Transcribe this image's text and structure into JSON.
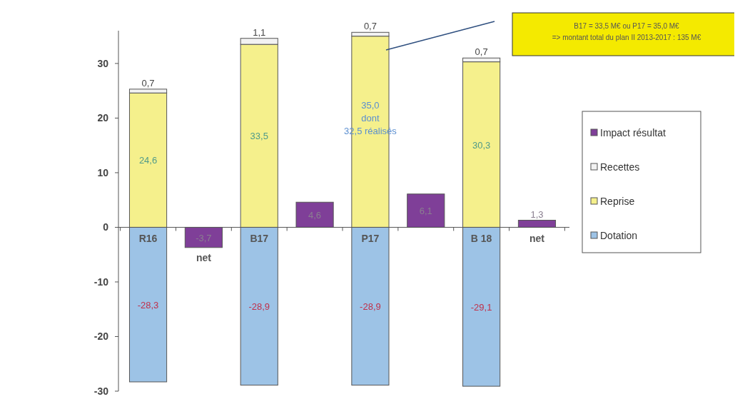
{
  "chart_data": {
    "type": "bar",
    "stacked": true,
    "categories": [
      "R16",
      "net",
      "B17",
      null,
      "P17",
      null,
      "B 18",
      "net"
    ],
    "series": [
      {
        "name": "Dotation",
        "color": "#9dc3e6",
        "values": [
          -28.3,
          null,
          -28.9,
          null,
          -28.9,
          null,
          -29.1,
          null
        ],
        "value_labels": [
          "-28,3",
          null,
          "-28,9",
          null,
          "-28,9",
          null,
          "-29,1",
          null
        ]
      },
      {
        "name": "Reprise",
        "color": "#f5f08c",
        "values": [
          24.6,
          null,
          33.5,
          null,
          35.0,
          null,
          30.3,
          null
        ],
        "value_labels": [
          "24,6",
          null,
          "33,5",
          null,
          "35,0\ndont\n32,5 réalisés",
          null,
          "30,3",
          null
        ]
      },
      {
        "name": "Recettes",
        "color": "#f2f2f2",
        "values": [
          0.7,
          null,
          1.1,
          null,
          0.7,
          null,
          0.7,
          null
        ],
        "value_labels": [
          "0,7",
          null,
          "1,1",
          null,
          "0,7",
          null,
          "0,7",
          null
        ]
      },
      {
        "name": "Impact résultat",
        "color": "#7f3f98",
        "values": [
          null,
          -3.7,
          null,
          4.6,
          null,
          6.1,
          null,
          1.3
        ],
        "value_labels": [
          null,
          "-3,7",
          null,
          "4,6",
          null,
          "6,1",
          null,
          "1,3"
        ]
      }
    ],
    "ylim": [
      -30,
      36
    ],
    "yticks": [
      -30,
      -20,
      -10,
      0,
      10,
      20,
      30
    ],
    "grid": false,
    "legend": "right",
    "annotations": [
      "B17 = 33,5 M€ ou P17 = 35,0 M€\n=> montant total du plan II 2013-2017 : 135 M€"
    ]
  }
}
